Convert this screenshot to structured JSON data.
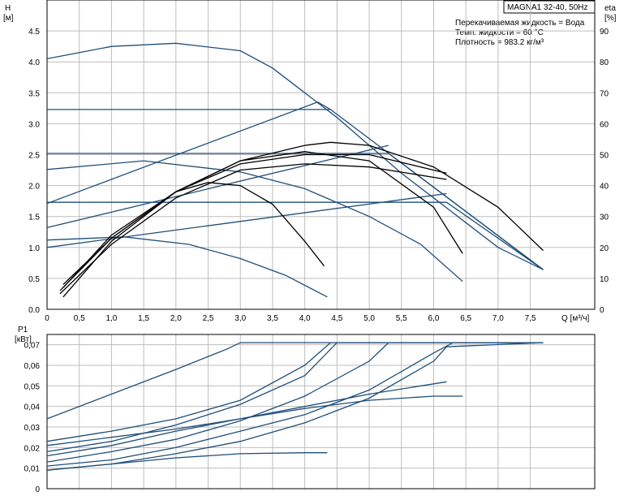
{
  "title_box": "MAGNA1 32-40, 50Hz",
  "info_lines": [
    "Перекачиваемая жидкость = Вода",
    "Темп. жидкости = 60 °C",
    "Плотность = 983.2 кг/м³"
  ],
  "colors": {
    "curve": "#1f4e79",
    "efficiency": "#000000",
    "grid": "#bdbdbd"
  },
  "chart_data": [
    {
      "type": "line",
      "name": "head",
      "xlabel": "Q [м³/ч]",
      "ylabel": "H",
      "ylabel_unit": "[м]",
      "y2label": "eta",
      "y2label_unit": "[%]",
      "xlim": [
        0,
        8.5
      ],
      "ylim": [
        0,
        5.0
      ],
      "y2lim": [
        0,
        100
      ],
      "x_ticks": [
        "0",
        "0,5",
        "1,0",
        "1,5",
        "2,0",
        "2,5",
        "3,0",
        "3,5",
        "4,0",
        "4,5",
        "5,0",
        "5,5",
        "6,0",
        "6,5",
        "7,0",
        "7,5"
      ],
      "x_tick_values": [
        0,
        0.5,
        1.0,
        1.5,
        2.0,
        2.5,
        3.0,
        3.5,
        4.0,
        4.5,
        5.0,
        5.5,
        6.0,
        6.5,
        7.0,
        7.5
      ],
      "y_ticks": [
        "0.0",
        "0.5",
        "1.0",
        "1.5",
        "2.0",
        "2.5",
        "3.0",
        "3.5",
        "4.0",
        "4.5"
      ],
      "y_tick_values": [
        0,
        0.5,
        1.0,
        1.5,
        2.0,
        2.5,
        3.0,
        3.5,
        4.0,
        4.5
      ],
      "y2_ticks": [
        "0",
        "10",
        "20",
        "30",
        "40",
        "50",
        "60",
        "70",
        "80",
        "90"
      ],
      "y2_tick_values": [
        0,
        10,
        20,
        30,
        40,
        50,
        60,
        70,
        80,
        90
      ],
      "grid": true,
      "head_series": [
        {
          "x": [
            0,
            1.0,
            2.0,
            3.0,
            3.5,
            4.0,
            4.5,
            5.0,
            5.5,
            6.0,
            6.5,
            7.0,
            7.7
          ],
          "y": [
            4.05,
            4.25,
            4.3,
            4.18,
            3.9,
            3.5,
            3.1,
            2.65,
            2.2,
            1.8,
            1.4,
            1.0,
            0.64
          ]
        },
        {
          "x": [
            0,
            4.4,
            7.7
          ],
          "y": [
            3.23,
            3.23,
            0.64
          ]
        },
        {
          "x": [
            0,
            5.3,
            7.7
          ],
          "y": [
            2.52,
            2.52,
            0.64
          ]
        },
        {
          "x": [
            0,
            6.2,
            7.7
          ],
          "y": [
            1.73,
            1.73,
            0.64
          ]
        },
        {
          "x": [
            0,
            1.5,
            3.0,
            4.0,
            5.0,
            5.8,
            6.45
          ],
          "y": [
            2.26,
            2.4,
            2.22,
            1.95,
            1.5,
            1.05,
            0.45
          ]
        },
        {
          "x": [
            0,
            1.2,
            2.2,
            3.0,
            3.7,
            4.35
          ],
          "y": [
            1.12,
            1.17,
            1.05,
            0.82,
            0.55,
            0.2
          ]
        },
        {
          "x": [
            0,
            4.2,
            4.4
          ],
          "y": [
            1.71,
            3.35,
            3.23
          ]
        },
        {
          "x": [
            0,
            5.3
          ],
          "y": [
            1.32,
            2.65
          ]
        },
        {
          "x": [
            0,
            6.2
          ],
          "y": [
            1.0,
            1.87
          ]
        }
      ],
      "eta_series": [
        {
          "x": [
            0.25,
            1.0,
            2.0,
            3.0,
            4.0,
            4.4,
            5.0,
            6.0,
            7.0,
            7.7
          ],
          "y": [
            4,
            22,
            38,
            48,
            53,
            54,
            53,
            46,
            33,
            19
          ]
        },
        {
          "x": [
            0.2,
            1.0,
            2.0,
            3.0,
            4.0,
            5.0,
            6.0,
            6.45
          ],
          "y": [
            6,
            23,
            38,
            48,
            51,
            48,
            33,
            18
          ]
        },
        {
          "x": [
            0.25,
            1.0,
            2.0,
            2.5,
            3.0,
            3.5,
            4.0,
            4.3
          ],
          "y": [
            7,
            24,
            38,
            41,
            40,
            34,
            22,
            14
          ]
        },
        {
          "x": [
            0.2,
            1.0,
            2.0,
            3.0,
            4.0,
            5.0,
            6.2
          ],
          "y": [
            5,
            21,
            36,
            45,
            47,
            46,
            42
          ]
        },
        {
          "x": [
            0.25,
            1.0,
            2.0,
            3.0,
            4.0,
            5.0,
            6.2
          ],
          "y": [
            8,
            23,
            38,
            47,
            50,
            50,
            44
          ]
        }
      ]
    },
    {
      "type": "line",
      "name": "power",
      "xlabel": "",
      "ylabel": "P1",
      "ylabel_unit": "[кВт]",
      "xlim": [
        0,
        8.5
      ],
      "ylim": [
        0,
        0.075
      ],
      "y_ticks": [
        "0",
        "0,01",
        "0,02",
        "0,03",
        "0,04",
        "0,05",
        "0,06",
        "0,07"
      ],
      "y_tick_values": [
        0,
        0.01,
        0.02,
        0.03,
        0.04,
        0.05,
        0.06,
        0.07
      ],
      "grid": true,
      "series": [
        {
          "x": [
            0,
            1.0,
            2.0,
            2.8,
            3.0,
            7.7
          ],
          "y": [
            0.034,
            0.046,
            0.058,
            0.068,
            0.071,
            0.071
          ]
        },
        {
          "x": [
            0,
            1.0,
            2.0,
            3.0,
            4.0,
            4.4,
            7.7
          ],
          "y": [
            0.023,
            0.028,
            0.034,
            0.043,
            0.06,
            0.071,
            0.071
          ]
        },
        {
          "x": [
            0,
            1.0,
            2.0,
            3.0,
            4.0,
            4.5,
            7.7
          ],
          "y": [
            0.018,
            0.023,
            0.031,
            0.041,
            0.055,
            0.071,
            0.071
          ]
        },
        {
          "x": [
            0,
            1.0,
            2.0,
            3.0,
            4.0,
            5.0,
            5.3,
            7.7
          ],
          "y": [
            0.013,
            0.018,
            0.024,
            0.033,
            0.045,
            0.062,
            0.071,
            0.071
          ]
        },
        {
          "x": [
            0,
            1.0,
            2.0,
            3.0,
            4.0,
            5.0,
            6.0,
            6.3,
            7.7
          ],
          "y": [
            0.011,
            0.014,
            0.02,
            0.028,
            0.036,
            0.048,
            0.066,
            0.071,
            0.071
          ]
        },
        {
          "x": [
            0,
            1.0,
            2.0,
            3.0,
            4.0,
            5.0,
            6.0,
            6.2,
            7.7
          ],
          "y": [
            0.009,
            0.012,
            0.017,
            0.023,
            0.032,
            0.044,
            0.062,
            0.069,
            0.071
          ]
        },
        {
          "x": [
            0,
            1.0,
            2.0,
            3.0,
            4.0,
            5.0,
            6.0,
            6.45
          ],
          "y": [
            0.016,
            0.021,
            0.028,
            0.034,
            0.039,
            0.043,
            0.045,
            0.045
          ]
        },
        {
          "x": [
            0,
            1.0,
            2.0,
            3.0,
            4.0,
            4.35
          ],
          "y": [
            0.009,
            0.012,
            0.015,
            0.017,
            0.0175,
            0.0175
          ]
        },
        {
          "x": [
            0,
            1.0,
            2.0,
            3.0,
            4.0,
            5.0,
            6.2
          ],
          "y": [
            0.021,
            0.025,
            0.029,
            0.034,
            0.04,
            0.046,
            0.052
          ]
        }
      ]
    }
  ]
}
